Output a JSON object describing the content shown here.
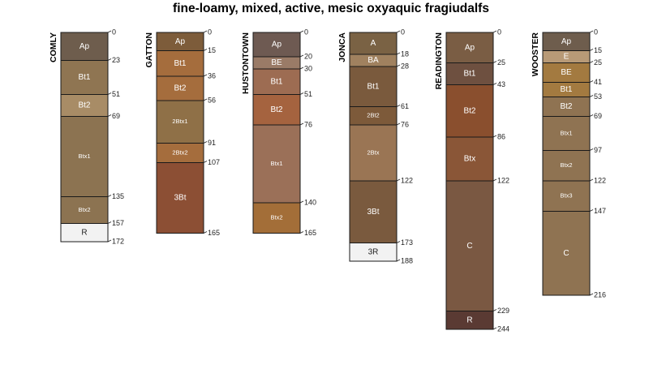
{
  "title": "fine-loamy, mixed, active, mesic oxyaquic fragiudalfs",
  "profiles": [
    {
      "name": "COMLY",
      "horizons": [
        {
          "name": "Ap",
          "top": 0,
          "bottom": 23,
          "color": "#6e5d4d"
        },
        {
          "name": "Bt1",
          "top": 23,
          "bottom": 51,
          "color": "#8f7552"
        },
        {
          "name": "Bt2",
          "top": 51,
          "bottom": 69,
          "color": "#a88c66"
        },
        {
          "name": "Btx1",
          "top": 69,
          "bottom": 135,
          "color": "#8c7351"
        },
        {
          "name": "Btx2",
          "top": 135,
          "bottom": 157,
          "color": "#8c7351"
        },
        {
          "name": "R",
          "top": 157,
          "bottom": 172,
          "color": "#f2f2f2"
        }
      ]
    },
    {
      "name": "GATTON",
      "horizons": [
        {
          "name": "Ap",
          "top": 0,
          "bottom": 15,
          "color": "#7d5c3a"
        },
        {
          "name": "Bt1",
          "top": 15,
          "bottom": 36,
          "color": "#a56d3d"
        },
        {
          "name": "Bt2",
          "top": 36,
          "bottom": 56,
          "color": "#a56d3d"
        },
        {
          "name": "2Btx1",
          "top": 56,
          "bottom": 91,
          "color": "#8f7047"
        },
        {
          "name": "2Btx2",
          "top": 91,
          "bottom": 107,
          "color": "#a56d3d"
        },
        {
          "name": "3Bt",
          "top": 107,
          "bottom": 165,
          "color": "#8c4f34"
        }
      ]
    },
    {
      "name": "HUSTONTOWN",
      "horizons": [
        {
          "name": "Ap",
          "top": 0,
          "bottom": 20,
          "color": "#6e5a52"
        },
        {
          "name": "BE",
          "top": 20,
          "bottom": 30,
          "color": "#9a7b67"
        },
        {
          "name": "Bt1",
          "top": 30,
          "bottom": 51,
          "color": "#9d6c52"
        },
        {
          "name": "Bt2",
          "top": 51,
          "bottom": 76,
          "color": "#a5633f"
        },
        {
          "name": "Btx1",
          "top": 76,
          "bottom": 140,
          "color": "#9b7058"
        },
        {
          "name": "Btx2",
          "top": 140,
          "bottom": 165,
          "color": "#a36e38"
        }
      ]
    },
    {
      "name": "JONCA",
      "horizons": [
        {
          "name": "A",
          "top": 0,
          "bottom": 18,
          "color": "#7a6244"
        },
        {
          "name": "BA",
          "top": 18,
          "bottom": 28,
          "color": "#a0815f"
        },
        {
          "name": "Bt1",
          "top": 28,
          "bottom": 61,
          "color": "#7a5a3d"
        },
        {
          "name": "2Bt2",
          "top": 61,
          "bottom": 76,
          "color": "#7d5a3a"
        },
        {
          "name": "2Btx",
          "top": 76,
          "bottom": 122,
          "color": "#9a7554"
        },
        {
          "name": "3Bt",
          "top": 122,
          "bottom": 173,
          "color": "#7a5a3e"
        },
        {
          "name": "3R",
          "top": 173,
          "bottom": 188,
          "color": "#f2f2f2"
        }
      ]
    },
    {
      "name": "READINGTON",
      "horizons": [
        {
          "name": "Ap",
          "top": 0,
          "bottom": 25,
          "color": "#7a5d44"
        },
        {
          "name": "Bt1",
          "top": 25,
          "bottom": 43,
          "color": "#6e5040"
        },
        {
          "name": "Bt2",
          "top": 43,
          "bottom": 86,
          "color": "#8a4f2e"
        },
        {
          "name": "Btx",
          "top": 86,
          "bottom": 122,
          "color": "#8a5637"
        },
        {
          "name": "C",
          "top": 122,
          "bottom": 229,
          "color": "#7a5842"
        },
        {
          "name": "R",
          "top": 229,
          "bottom": 244,
          "color": "#5a3a33"
        }
      ]
    },
    {
      "name": "WOOSTER",
      "horizons": [
        {
          "name": "Ap",
          "top": 0,
          "bottom": 15,
          "color": "#6e5d4d"
        },
        {
          "name": "E",
          "top": 15,
          "bottom": 25,
          "color": "#b89a77"
        },
        {
          "name": "BE",
          "top": 25,
          "bottom": 41,
          "color": "#a37a40"
        },
        {
          "name": "Bt1",
          "top": 41,
          "bottom": 53,
          "color": "#a37a40"
        },
        {
          "name": "Bt2",
          "top": 53,
          "bottom": 69,
          "color": "#8f7352"
        },
        {
          "name": "Btx1",
          "top": 69,
          "bottom": 97,
          "color": "#8f7352"
        },
        {
          "name": "Btx2",
          "top": 97,
          "bottom": 122,
          "color": "#8f7352"
        },
        {
          "name": "Btx3",
          "top": 122,
          "bottom": 147,
          "color": "#8f7352"
        },
        {
          "name": "C",
          "top": 147,
          "bottom": 216,
          "color": "#8f7352"
        }
      ]
    }
  ]
}
